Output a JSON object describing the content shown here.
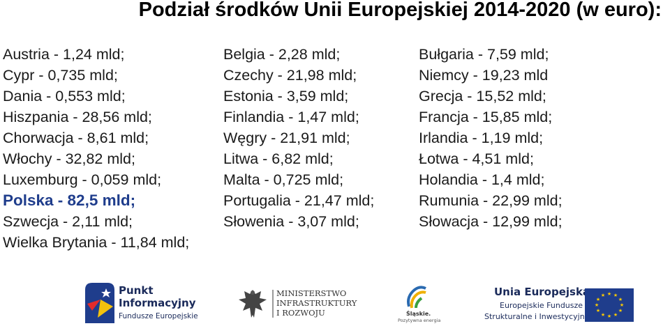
{
  "title": "Podział środków Unii Europejskiej 2014-2020 (w euro):",
  "rows": [
    [
      "Austria  - 1,24 mld;",
      "Belgia  - 2,28 mld;",
      "Bułgaria - 7,59 mld;"
    ],
    [
      "Cypr - 0,735 mld;",
      "Czechy - 21,98 mld;",
      "Niemcy - 19,23 mld"
    ],
    [
      "Dania - 0,553 mld;",
      "Estonia - 3,59 mld;",
      "Grecja - 15,52 mld;"
    ],
    [
      "Hiszpania - 28,56 mld;",
      "Finlandia - 1,47 mld;",
      "Francja - 15,85 mld;"
    ],
    [
      "Chorwacja - 8,61 mld;",
      "Węgry - 21,91 mld;",
      "Irlandia - 1,19 mld;"
    ],
    [
      "Włochy - 32,82 mld;",
      "Litwa - 6,82 mld;",
      "Łotwa - 4,51 mld;"
    ],
    [
      "Luxemburg - 0,059 mld;",
      "Malta - 0,725 mld;",
      "Holandia - 1,4 mld;"
    ],
    [
      "Polska - 82,5 mld;",
      "Portugalia - 21,47 mld;",
      "Rumunia - 22,99 mld;"
    ],
    [
      "Szwecja - 2,11 mld;",
      "Słowenia - 3,07 mld;",
      "Słowacja - 12,99 mld;"
    ],
    [
      "Wielka Brytania - 11,84 mld;",
      "",
      ""
    ]
  ],
  "logos": {
    "punkt": {
      "line1": "Punkt",
      "line2": "Informacyjny",
      "line3": "Fundusze Europejskie"
    },
    "ministerstwo": {
      "line1": "MINISTERSTWO",
      "line2": "INFRASTRUKTURY",
      "line3": "I ROZWOJU"
    },
    "slaskie": {
      "line1": "Śląskie.",
      "line2": "Pozytywna energia"
    },
    "ue": {
      "line1": "Unia Europejska",
      "line2": "Europejskie Fundusze",
      "line3": "Strukturalne i Inwestycyjne"
    }
  },
  "colors": {
    "highlight": "#1f3d8c",
    "eu_blue": "#1f3d8c",
    "eu_star": "#ffcc00"
  }
}
